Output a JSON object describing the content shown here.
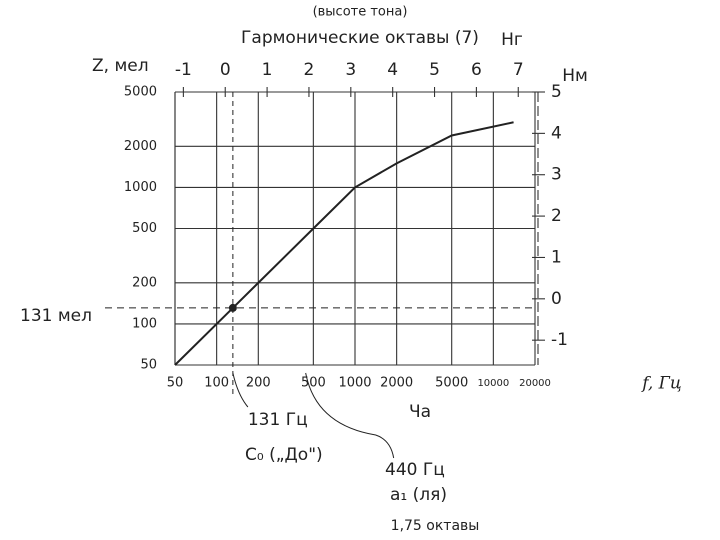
{
  "chart_data": {
    "type": "line",
    "title": "(высоте тона)",
    "subtitle": "Гармонические октавы (7)",
    "x_label": "f, Гц",
    "x_label_2": "Ча",
    "y_label": "Z, мел",
    "top_axis_label": "Нг",
    "y2_label": "Нм",
    "log_x": true,
    "log_y": true,
    "grid": true,
    "xlim": [
      50,
      20000
    ],
    "xticks": [
      50,
      100,
      200,
      500,
      1000,
      2000,
      5000,
      10000,
      20000
    ],
    "ylim": [
      50,
      5000
    ],
    "yticks": [
      50,
      100,
      200,
      500,
      1000,
      2000,
      5000
    ],
    "top_xlim": [
      -1.2,
      7.4
    ],
    "top_xticks": [
      -1,
      0,
      1,
      2,
      3,
      4,
      5,
      6,
      7
    ],
    "y2lim": [
      -1.6,
      5
    ],
    "y2ticks": [
      -1,
      0,
      1,
      2,
      3,
      4,
      5
    ],
    "series": [
      {
        "name": "Z",
        "color": "#222222",
        "x": [
          50,
          131,
          500,
          1000,
          2000,
          5000,
          14000
        ],
        "values": [
          50,
          131,
          500,
          1000,
          1500,
          2400,
          3000
        ]
      }
    ],
    "reference": {
      "x": 131,
      "y": 131,
      "x_label": "131 Гц",
      "y_label": "131 мел",
      "note": "С₀ („До\")"
    },
    "pointer": {
      "x": 440,
      "label": "440 Гц",
      "note": "a₁ (ля)"
    },
    "footer": "1,75 октавы"
  }
}
